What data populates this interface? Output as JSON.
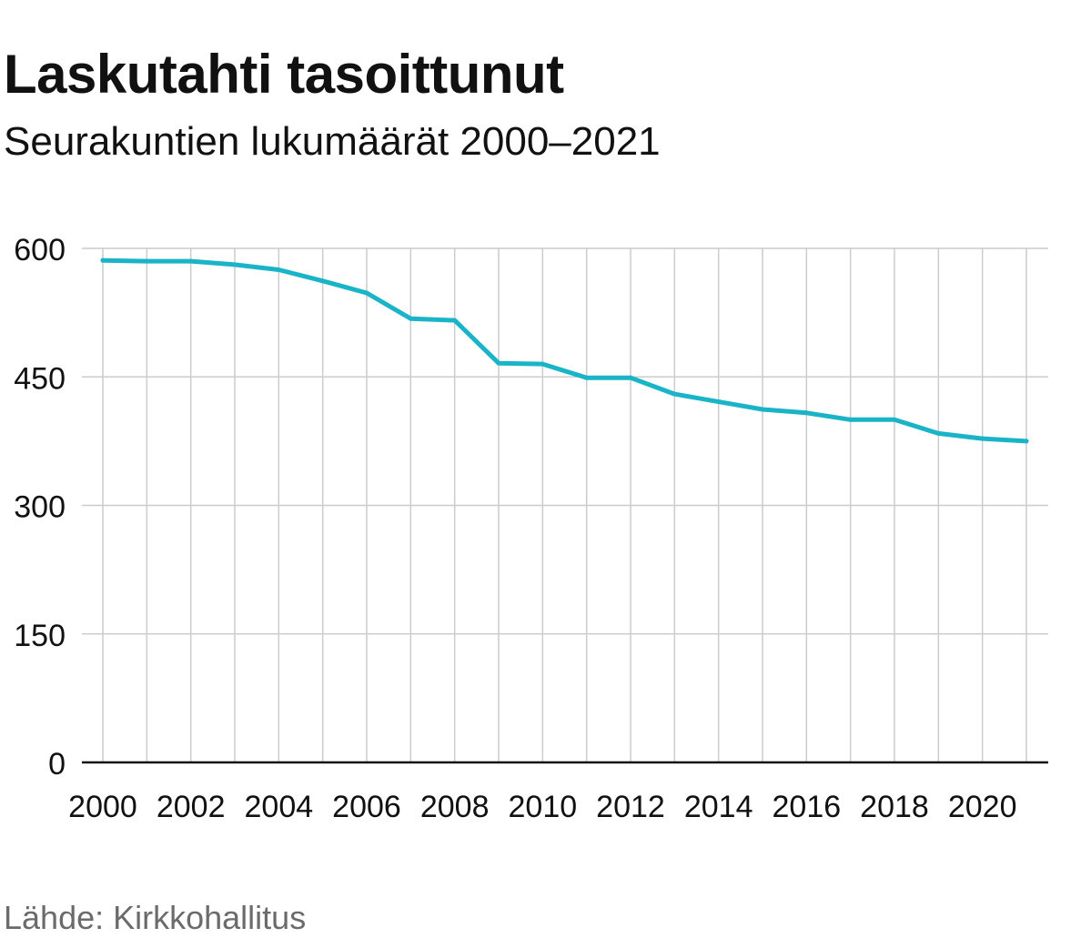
{
  "title": "Laskutahti tasoittunut",
  "subtitle": "Seurakuntien lukumäärät 2000–2021",
  "source": "Lähde: Kirkkohallitus",
  "colors": {
    "line": "#1ab4c8",
    "grid": "#cccccc",
    "axis": "#111111",
    "text": "#111111",
    "source": "#6b6b6b"
  },
  "chart_data": {
    "type": "line",
    "title": "Laskutahti tasoittunut",
    "subtitle": "Seurakuntien lukumäärät 2000–2021",
    "xlabel": "",
    "ylabel": "",
    "x": [
      2000,
      2001,
      2002,
      2003,
      2004,
      2005,
      2006,
      2007,
      2008,
      2009,
      2010,
      2011,
      2012,
      2013,
      2014,
      2015,
      2016,
      2017,
      2018,
      2019,
      2020,
      2021
    ],
    "series": [
      {
        "values": [
          586,
          585,
          585,
          581,
          575,
          562,
          548,
          518,
          516,
          466,
          465,
          449,
          449,
          430,
          421,
          412,
          408,
          400,
          400,
          384,
          378,
          375
        ]
      }
    ],
    "xlim": [
      2000,
      2021
    ],
    "ylim": [
      0,
      600
    ],
    "yticks": [
      0,
      150,
      300,
      450,
      600
    ],
    "xticks": [
      2000,
      2002,
      2004,
      2006,
      2008,
      2010,
      2012,
      2014,
      2016,
      2018,
      2020
    ],
    "grid": true,
    "legend": "none"
  }
}
